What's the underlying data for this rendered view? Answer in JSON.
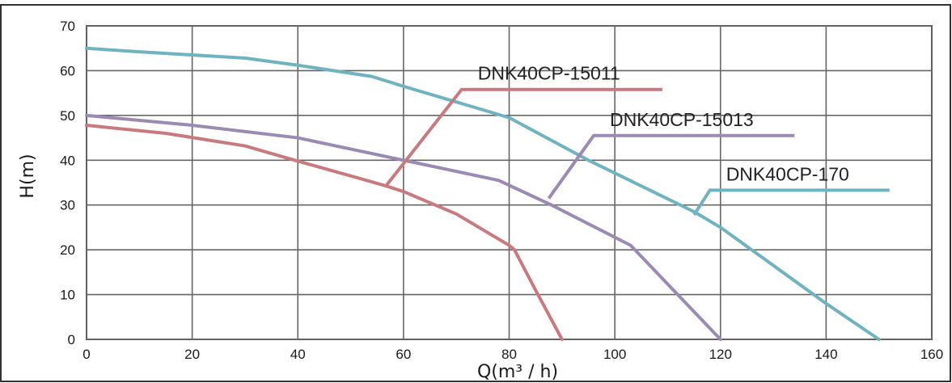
{
  "chart_data": {
    "type": "line",
    "title": "",
    "xlabel": "Q(m³ / h)",
    "ylabel": "H(m)",
    "xlim": [
      0,
      160
    ],
    "ylim": [
      0,
      70
    ],
    "x_ticks": [
      0,
      20,
      40,
      60,
      80,
      100,
      120,
      140,
      160
    ],
    "y_ticks": [
      0,
      10,
      20,
      30,
      40,
      50,
      60,
      70
    ],
    "grid": true,
    "legend": "none",
    "series": [
      {
        "name": "DNK40CP-15011",
        "color": "#c97a7e",
        "x": [
          0,
          15,
          30,
          40,
          50,
          56,
          60,
          70,
          80,
          81,
          85,
          90
        ],
        "y": [
          47.8,
          46.0,
          43.2,
          39.8,
          36.5,
          34.5,
          33.0,
          28.0,
          21.0,
          20.0,
          11.0,
          0
        ],
        "annotation": {
          "text": "DNK40CP-15011",
          "anchor": [
            56.5,
            34.0
          ],
          "elbow": [
            71,
            55.8
          ],
          "end": [
            109,
            55.8
          ]
        }
      },
      {
        "name": "DNK40CP-15013",
        "color": "#9b8ab3",
        "x": [
          0,
          20,
          40,
          60,
          78,
          88,
          103,
          120
        ],
        "y": [
          50.0,
          47.8,
          45.0,
          40.0,
          35.5,
          30.0,
          21.0,
          0
        ],
        "annotation": {
          "text": "DNK40CP-15013",
          "anchor": [
            87.5,
            31.5
          ],
          "elbow": [
            96,
            45.5
          ],
          "end": [
            134,
            45.5
          ]
        }
      },
      {
        "name": "DNK40CP-170",
        "color": "#6fb3c0",
        "x": [
          0,
          10,
          30,
          40,
          54,
          60,
          70,
          80,
          95,
          115,
          120,
          140,
          150
        ],
        "y": [
          65.0,
          64.2,
          62.8,
          61.2,
          58.7,
          56.5,
          53.0,
          49.5,
          40.0,
          28.5,
          25.0,
          8.0,
          0
        ],
        "annotation": {
          "text": "DNK40CP-170",
          "anchor": [
            115,
            27.8
          ],
          "elbow": [
            118,
            33.3
          ],
          "end": [
            152,
            33.3
          ]
        }
      }
    ]
  }
}
